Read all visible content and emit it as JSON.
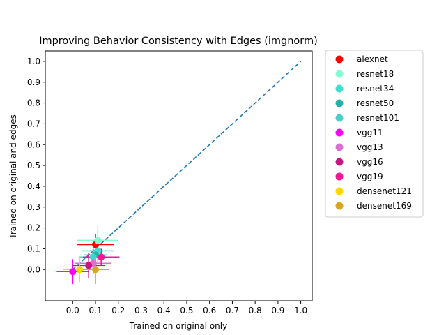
{
  "chart_data": {
    "type": "scatter",
    "title": "Improving Behavior Consistency with Edges (imgnorm)",
    "xlabel": "Trained on original only",
    "ylabel": "Trained on original and edges",
    "xlim": [
      -0.12,
      1.05
    ],
    "ylim": [
      -0.15,
      1.05
    ],
    "xticks": [
      "0.0",
      "0.1",
      "0.2",
      "0.3",
      "0.4",
      "0.5",
      "0.6",
      "0.7",
      "0.8",
      "0.9",
      "1.0"
    ],
    "yticks": [
      "0.0",
      "0.1",
      "0.2",
      "0.3",
      "0.4",
      "0.5",
      "0.6",
      "0.7",
      "0.8",
      "0.9",
      "1.0"
    ],
    "grid": false,
    "legend_position": "outside-right",
    "diagonal": {
      "from": [
        0.0,
        0.0
      ],
      "to": [
        1.0,
        1.0
      ],
      "color": "#1f77b4",
      "style": "dashed"
    },
    "series": [
      {
        "name": "alexnet",
        "color": "#ff0000",
        "x": 0.1,
        "y": 0.12,
        "xerr": 0.08,
        "yerr": 0.05
      },
      {
        "name": "resnet18",
        "color": "#7fffd4",
        "x": 0.11,
        "y": 0.14,
        "xerr": 0.09,
        "yerr": 0.07
      },
      {
        "name": "resnet34",
        "color": "#40e0d0",
        "x": 0.11,
        "y": 0.09,
        "xerr": 0.07,
        "yerr": 0.06
      },
      {
        "name": "resnet50",
        "color": "#20b2aa",
        "x": 0.1,
        "y": 0.07,
        "xerr": 0.05,
        "yerr": 0.07
      },
      {
        "name": "resnet101",
        "color": "#48d1cc",
        "x": 0.09,
        "y": 0.06,
        "xerr": 0.06,
        "yerr": 0.06
      },
      {
        "name": "vgg11",
        "color": "#ff00ff",
        "x": 0.0,
        "y": -0.01,
        "xerr": 0.07,
        "yerr": 0.06
      },
      {
        "name": "vgg13",
        "color": "#da70d6",
        "x": 0.09,
        "y": 0.03,
        "xerr": 0.08,
        "yerr": 0.05
      },
      {
        "name": "vgg16",
        "color": "#c71585",
        "x": 0.07,
        "y": 0.02,
        "xerr": 0.07,
        "yerr": 0.06
      },
      {
        "name": "vgg19",
        "color": "#ff1493",
        "x": 0.125,
        "y": 0.06,
        "xerr": 0.08,
        "yerr": 0.04
      },
      {
        "name": "densenet121",
        "color": "#ffd700",
        "x": 0.03,
        "y": 0.0,
        "xerr": 0.07,
        "yerr": 0.06
      },
      {
        "name": "densenet169",
        "color": "#daa520",
        "x": 0.1,
        "y": 0.0,
        "xerr": 0.06,
        "yerr": 0.07
      }
    ]
  }
}
